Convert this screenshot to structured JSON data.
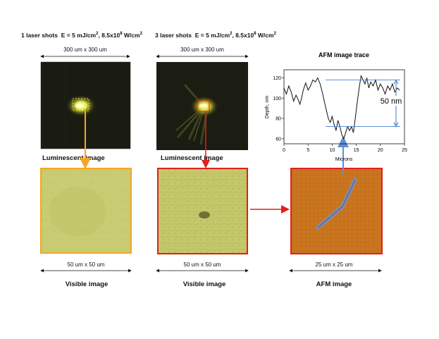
{
  "header_left": {
    "label": "1 laser shots",
    "energy": "E = 5 mJ/cm",
    "intensity": ", 8.5x10",
    "intensity_unit": " W/cm",
    "exp_sq": "2",
    "exp_8": "8"
  },
  "header_mid": {
    "label": "3 laser shots",
    "energy": "E = 5 mJ/cm",
    "intensity": ", 8.5x10",
    "intensity_unit": " W/cm",
    "exp_sq": "2",
    "exp_8": "8"
  },
  "dims": {
    "lum_left": "300 um x 300 um",
    "lum_mid": "300 um x 300 um",
    "vis_left": "50 um x 50 um",
    "vis_mid": "50 um x 50 um",
    "afm": "25 um x 25 um"
  },
  "captions": {
    "lum_left": "Luminescent image",
    "lum_mid": "Luminescent  image",
    "vis_left": "Visible image",
    "vis_mid": "Visible image",
    "afm": "AFM image"
  },
  "colors": {
    "arrow_orange": "#f5a623",
    "arrow_red": "#e0201b",
    "arrow_blue": "#5b8fd6",
    "afm_fill": "#c8741e",
    "visible_fill": "#c9cc72"
  },
  "chart_data": {
    "type": "line",
    "title": "AFM image trace",
    "xlabel": "Microns",
    "ylabel": "Depth, nm",
    "xlim": [
      0,
      25
    ],
    "ylim": [
      55,
      128
    ],
    "xticks": [
      0,
      5,
      10,
      15,
      20,
      25
    ],
    "yticks": [
      60,
      80,
      100,
      120
    ],
    "annotation": "50 nm",
    "ref_levels": [
      118,
      72
    ],
    "series": [
      {
        "x": [
          0,
          0.5,
          1,
          1.5,
          2,
          2.5,
          3,
          3.3,
          3.6,
          4,
          4.5,
          5,
          5.5,
          6,
          6.5,
          7,
          7.5,
          8,
          8.4,
          8.8,
          9.2,
          9.6,
          10,
          10.4,
          10.8,
          11.2,
          11.6,
          12,
          12.4,
          12.8,
          13.2,
          13.6,
          14,
          14.4,
          14.8,
          15.2,
          15.6,
          16,
          16.4,
          16.8,
          17.2,
          17.6,
          18,
          18.5,
          19,
          19.5,
          20,
          20.5,
          21,
          21.5,
          22,
          22.5,
          23,
          23.5,
          24
        ],
        "y": [
          110,
          104,
          112,
          106,
          97,
          103,
          98,
          94,
          99,
          108,
          115,
          108,
          112,
          118,
          116,
          120,
          114,
          105,
          96,
          88,
          80,
          76,
          82,
          74,
          68,
          78,
          72,
          64,
          60,
          66,
          72,
          68,
          72,
          66,
          80,
          96,
          110,
          122,
          118,
          114,
          120,
          110,
          116,
          112,
          118,
          108,
          114,
          110,
          104,
          112,
          108,
          114,
          106,
          110,
          108
        ]
      }
    ]
  }
}
